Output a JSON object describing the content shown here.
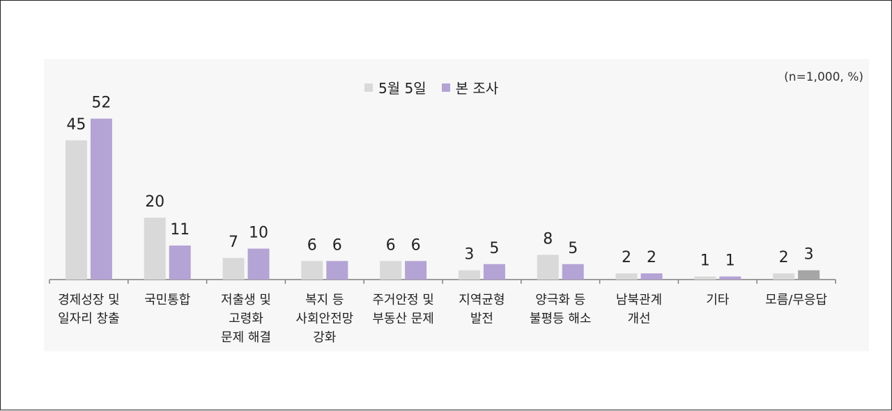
{
  "chart_data": {
    "type": "bar",
    "note": "(n=1,000, %)",
    "categories": [
      [
        "경제성장 및",
        "일자리 창출"
      ],
      [
        "국민통합"
      ],
      [
        "저출생 및",
        "고령화",
        "문제 해결"
      ],
      [
        "복지 등",
        "사회안전망",
        "강화"
      ],
      [
        "주거안정 및",
        "부동산 문제"
      ],
      [
        "지역균형",
        "발전"
      ],
      [
        "양극화 등",
        "불평등 해소"
      ],
      [
        "남북관계",
        "개선"
      ],
      [
        "기타"
      ],
      [
        "모름/무응답"
      ]
    ],
    "series": [
      {
        "name": "5월 5일",
        "color": "#d9d9d9",
        "values": [
          45,
          20,
          7,
          6,
          6,
          3,
          8,
          2,
          1,
          2
        ]
      },
      {
        "name": "본 조사",
        "color": "#b4a3d5",
        "values": [
          52,
          11,
          10,
          6,
          6,
          5,
          5,
          2,
          1,
          3
        ]
      }
    ],
    "special_colors": {
      "last_category_series2": "#a6a6a6"
    },
    "legend_position": "top-center",
    "grid": false,
    "ylim": [
      0,
      60
    ]
  }
}
